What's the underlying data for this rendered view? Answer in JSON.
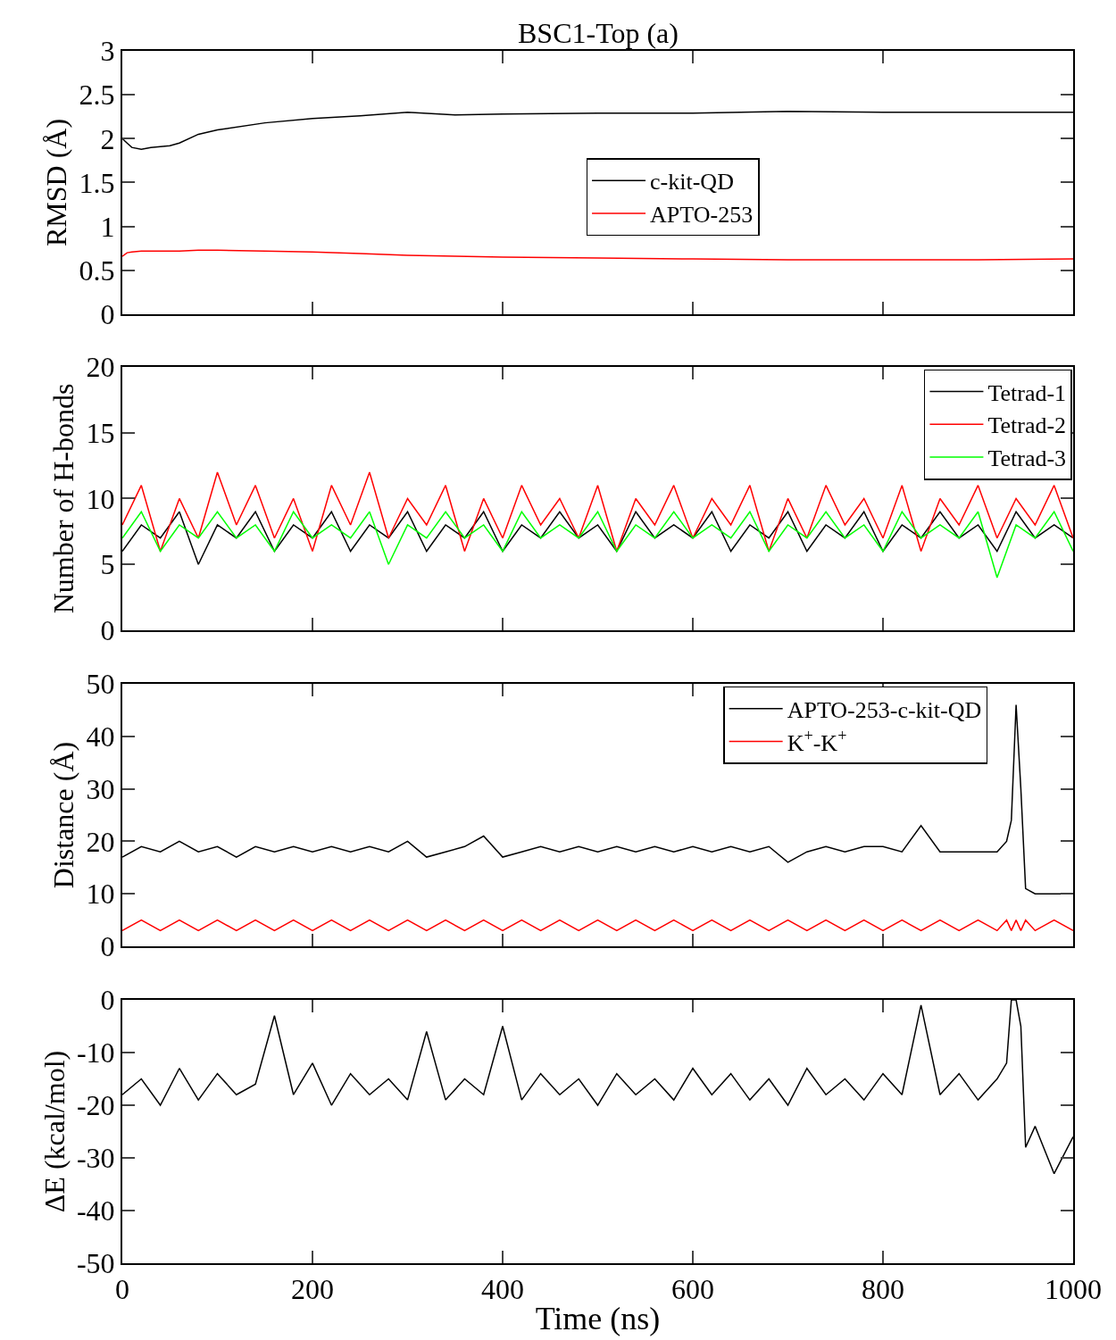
{
  "chart_data": [
    {
      "type": "line",
      "title": "BSC1-Top (a)",
      "ylabel": "RMSD (Å)",
      "xlim": [
        0,
        1000
      ],
      "xticks": [
        0,
        200,
        400,
        600,
        800,
        1000
      ],
      "ylim": [
        0,
        3
      ],
      "yticks": [
        0,
        0.5,
        1,
        1.5,
        2,
        2.5,
        3
      ],
      "tick_labels": "y",
      "legend": "right",
      "x": [
        0,
        5,
        10,
        20,
        30,
        50,
        60,
        80,
        100,
        150,
        200,
        250,
        300,
        350,
        400,
        500,
        600,
        700,
        800,
        900,
        1000
      ],
      "series": [
        {
          "name": "c-kit-QD",
          "color": "#000000",
          "values": [
            2.0,
            1.95,
            1.9,
            1.88,
            1.9,
            1.92,
            1.95,
            2.05,
            2.1,
            2.18,
            2.23,
            2.26,
            2.3,
            2.27,
            2.28,
            2.29,
            2.29,
            2.31,
            2.3,
            2.3,
            2.3
          ]
        },
        {
          "name": "APTO-253",
          "color": "#ff0000",
          "values": [
            0.66,
            0.7,
            0.71,
            0.72,
            0.72,
            0.72,
            0.72,
            0.73,
            0.73,
            0.72,
            0.71,
            0.69,
            0.67,
            0.66,
            0.65,
            0.64,
            0.63,
            0.62,
            0.62,
            0.62,
            0.63
          ]
        }
      ]
    },
    {
      "type": "line",
      "ylabel": "Number of H-bonds",
      "xlim": [
        0,
        1000
      ],
      "xticks": [
        0,
        200,
        400,
        600,
        800,
        1000
      ],
      "ylim": [
        0,
        20
      ],
      "yticks": [
        0,
        5,
        10,
        15,
        20
      ],
      "tick_labels": "y",
      "legend": "top right",
      "x": [
        0,
        20,
        40,
        60,
        80,
        100,
        120,
        140,
        160,
        180,
        200,
        220,
        240,
        260,
        280,
        300,
        320,
        340,
        360,
        380,
        400,
        420,
        440,
        460,
        480,
        500,
        520,
        540,
        560,
        580,
        600,
        620,
        640,
        660,
        680,
        700,
        720,
        740,
        760,
        780,
        800,
        820,
        840,
        860,
        880,
        900,
        920,
        940,
        960,
        980,
        1000
      ],
      "series": [
        {
          "name": "Tetrad-1",
          "color": "#000000",
          "values": [
            6,
            8,
            7,
            9,
            5,
            8,
            7,
            9,
            6,
            8,
            7,
            9,
            6,
            8,
            7,
            9,
            6,
            8,
            7,
            9,
            6,
            8,
            7,
            9,
            7,
            8,
            6,
            9,
            7,
            8,
            7,
            9,
            6,
            8,
            7,
            9,
            6,
            8,
            7,
            9,
            6,
            8,
            7,
            9,
            7,
            8,
            6,
            9,
            7,
            8,
            7
          ]
        },
        {
          "name": "Tetrad-2",
          "color": "#ff0000",
          "values": [
            8,
            11,
            6,
            10,
            7,
            12,
            8,
            11,
            7,
            10,
            6,
            11,
            8,
            12,
            7,
            10,
            8,
            11,
            6,
            10,
            7,
            11,
            8,
            10,
            7,
            11,
            6,
            10,
            8,
            11,
            7,
            10,
            8,
            11,
            6,
            10,
            7,
            11,
            8,
            10,
            7,
            11,
            6,
            10,
            8,
            11,
            7,
            10,
            8,
            11,
            7
          ]
        },
        {
          "name": "Tetrad-3",
          "color": "#00ff00",
          "values": [
            7,
            9,
            6,
            8,
            7,
            9,
            7,
            8,
            6,
            9,
            7,
            8,
            7,
            9,
            5,
            8,
            7,
            9,
            7,
            8,
            6,
            9,
            7,
            8,
            7,
            9,
            6,
            8,
            7,
            9,
            7,
            8,
            7,
            9,
            6,
            8,
            7,
            9,
            7,
            8,
            6,
            9,
            7,
            8,
            7,
            9,
            4,
            8,
            7,
            9,
            6
          ]
        }
      ]
    },
    {
      "type": "line",
      "ylabel": "Distance (Å)",
      "xlim": [
        0,
        1000
      ],
      "xticks": [
        0,
        200,
        400,
        600,
        800,
        1000
      ],
      "ylim": [
        0,
        50
      ],
      "yticks": [
        0,
        10,
        20,
        30,
        40,
        50
      ],
      "tick_labels": "y",
      "legend": "top right",
      "x": [
        0,
        20,
        40,
        60,
        80,
        100,
        120,
        140,
        160,
        180,
        200,
        220,
        240,
        260,
        280,
        300,
        320,
        340,
        360,
        380,
        400,
        420,
        440,
        460,
        480,
        500,
        520,
        540,
        560,
        580,
        600,
        620,
        640,
        660,
        680,
        700,
        720,
        740,
        760,
        780,
        800,
        820,
        840,
        860,
        880,
        900,
        920,
        930,
        935,
        940,
        945,
        950,
        960,
        980,
        1000
      ],
      "series": [
        {
          "name": "APTO-253-c-kit-QD",
          "color": "#000000",
          "values": [
            17,
            19,
            18,
            20,
            18,
            19,
            17,
            19,
            18,
            19,
            18,
            19,
            18,
            19,
            18,
            20,
            17,
            18,
            19,
            21,
            17,
            18,
            19,
            18,
            19,
            18,
            19,
            18,
            19,
            18,
            19,
            18,
            19,
            18,
            19,
            16,
            18,
            19,
            18,
            19,
            19,
            18,
            23,
            18,
            18,
            18,
            18,
            20,
            24,
            46,
            30,
            11,
            10,
            10,
            10
          ]
        },
        {
          "name": "K$^{+}$-K$^{+}$",
          "color": "#ff0000",
          "values": [
            3,
            5,
            3,
            5,
            3,
            5,
            3,
            5,
            3,
            5,
            3,
            5,
            3,
            5,
            3,
            5,
            3,
            5,
            3,
            5,
            3,
            5,
            3,
            5,
            3,
            5,
            3,
            5,
            3,
            5,
            3,
            5,
            3,
            5,
            3,
            5,
            3,
            5,
            3,
            5,
            3,
            5,
            3,
            5,
            3,
            5,
            3,
            5,
            3,
            5,
            3,
            5,
            3,
            5,
            3
          ]
        }
      ]
    },
    {
      "type": "line",
      "ylabel": "ΔE (kcal/mol)",
      "xlabel": "Time (ns)",
      "xlim": [
        0,
        1000
      ],
      "xticks": [
        0,
        200,
        400,
        600,
        800,
        1000
      ],
      "ylim": [
        -50,
        0
      ],
      "yticks": [
        -50,
        -40,
        -30,
        -20,
        -10,
        0
      ],
      "x": [
        0,
        20,
        40,
        60,
        80,
        100,
        120,
        140,
        160,
        180,
        200,
        220,
        240,
        260,
        280,
        300,
        320,
        340,
        360,
        380,
        400,
        420,
        440,
        460,
        480,
        500,
        520,
        540,
        560,
        580,
        600,
        620,
        640,
        660,
        680,
        700,
        720,
        740,
        760,
        780,
        800,
        820,
        840,
        860,
        880,
        900,
        920,
        930,
        935,
        940,
        945,
        950,
        960,
        980,
        1000
      ],
      "series": [
        {
          "color": "#000000",
          "values": [
            -18,
            -15,
            -20,
            -13,
            -19,
            -14,
            -18,
            -16,
            -3,
            -18,
            -12,
            -20,
            -14,
            -18,
            -15,
            -19,
            -6,
            -19,
            -15,
            -18,
            -5,
            -19,
            -14,
            -18,
            -15,
            -20,
            -14,
            -18,
            -15,
            -19,
            -13,
            -18,
            -14,
            -19,
            -15,
            -20,
            -13,
            -18,
            -15,
            -19,
            -14,
            -18,
            -1,
            -18,
            -14,
            -19,
            -15,
            -12,
            0,
            0,
            -5,
            -28,
            -24,
            -33,
            -26
          ]
        }
      ]
    }
  ]
}
